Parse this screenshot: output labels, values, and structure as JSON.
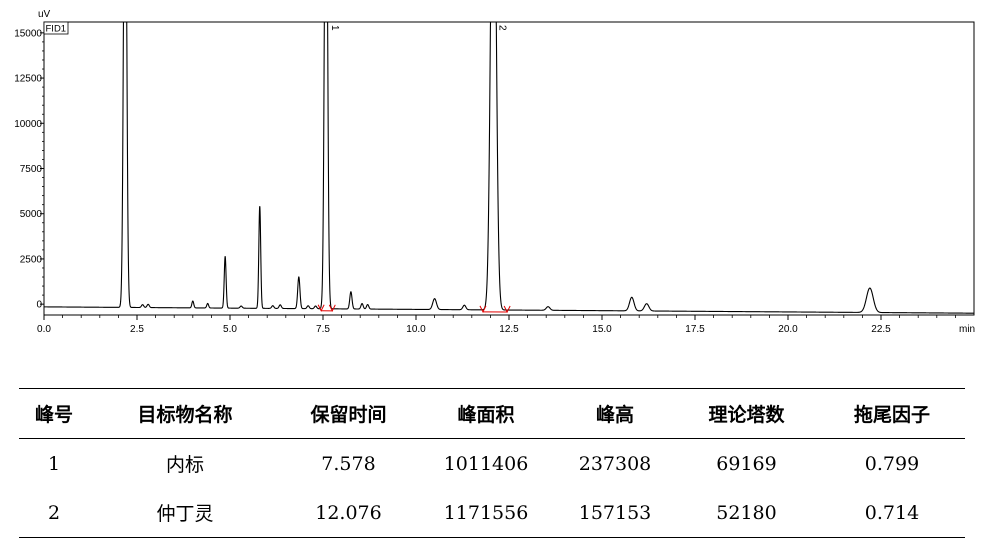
{
  "chart_data": {
    "type": "line",
    "title": "",
    "ylabel": "uV",
    "xlabel": "min",
    "detector_label": "FID1",
    "xlim": [
      0,
      25
    ],
    "ylim": [
      -600,
      15600
    ],
    "x_ticks": [
      "0.0",
      "2.5",
      "5.0",
      "7.5",
      "10.0",
      "12.5",
      "15.0",
      "17.5",
      "20.0",
      "22.5"
    ],
    "y_ticks": [
      "0",
      "2500",
      "5000",
      "7500",
      "10000",
      "12500",
      "15000"
    ],
    "baseline": -150,
    "baseline_end": -500,
    "peaks": [
      {
        "t": 2.18,
        "h": 30000,
        "w": 0.04
      },
      {
        "t": 2.65,
        "h": 160,
        "w": 0.03
      },
      {
        "t": 2.8,
        "h": 180,
        "w": 0.03
      },
      {
        "t": 4.0,
        "h": 380,
        "w": 0.025
      },
      {
        "t": 4.4,
        "h": 250,
        "w": 0.025
      },
      {
        "t": 4.87,
        "h": 2850,
        "w": 0.025
      },
      {
        "t": 5.3,
        "h": 120,
        "w": 0.03
      },
      {
        "t": 5.8,
        "h": 5650,
        "w": 0.025
      },
      {
        "t": 6.15,
        "h": 150,
        "w": 0.03
      },
      {
        "t": 6.35,
        "h": 200,
        "w": 0.03
      },
      {
        "t": 6.85,
        "h": 1750,
        "w": 0.03
      },
      {
        "t": 7.1,
        "h": 160,
        "w": 0.03
      },
      {
        "t": 7.3,
        "h": 150,
        "w": 0.03
      },
      {
        "t": 7.58,
        "h": 30000,
        "w": 0.04
      },
      {
        "t": 8.25,
        "h": 950,
        "w": 0.03
      },
      {
        "t": 8.55,
        "h": 300,
        "w": 0.03
      },
      {
        "t": 8.7,
        "h": 250,
        "w": 0.03
      },
      {
        "t": 10.5,
        "h": 600,
        "w": 0.05
      },
      {
        "t": 11.3,
        "h": 250,
        "w": 0.04
      },
      {
        "t": 12.08,
        "h": 30000,
        "w": 0.07
      },
      {
        "t": 13.55,
        "h": 200,
        "w": 0.05
      },
      {
        "t": 15.8,
        "h": 750,
        "w": 0.06
      },
      {
        "t": 16.2,
        "h": 400,
        "w": 0.06
      },
      {
        "t": 22.2,
        "h": 1350,
        "w": 0.09
      }
    ],
    "peak_labels": [
      {
        "t": 7.58,
        "text": "1"
      },
      {
        "t": 12.08,
        "text": "2"
      }
    ],
    "integration_marks": [
      7.45,
      7.75,
      11.8,
      12.45
    ]
  },
  "table": {
    "headers": [
      "峰号",
      "目标物名称",
      "保留时间",
      "峰面积",
      "峰高",
      "理论塔数",
      "拖尾因子"
    ],
    "rows": [
      [
        "1",
        "内标",
        "7.578",
        "1011406",
        "237308",
        "69169",
        "0.799"
      ],
      [
        "2",
        "仲丁灵",
        "12.076",
        "1171556",
        "157153",
        "52180",
        "0.714"
      ]
    ]
  }
}
